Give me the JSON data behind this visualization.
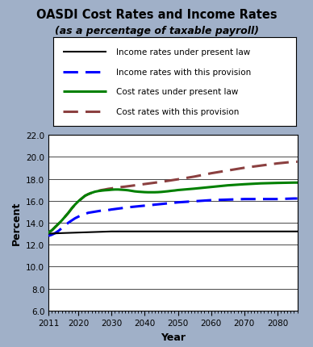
{
  "title": "OASDI Cost Rates and Income Rates",
  "subtitle": "(as a percentage of taxable payroll)",
  "xlabel": "Year",
  "ylabel": "Percent",
  "ylim": [
    6.0,
    22.0
  ],
  "yticks": [
    6.0,
    8.0,
    10.0,
    12.0,
    14.0,
    16.0,
    18.0,
    20.0,
    22.0
  ],
  "xlim": [
    2011,
    2086
  ],
  "xticks": [
    2011,
    2020,
    2030,
    2040,
    2050,
    2060,
    2070,
    2080
  ],
  "background_color": "#a0b0c8",
  "plot_background": "#ffffff",
  "legend_labels": [
    "Income rates under present law",
    "Income rates with this provision",
    "Cost rates under present law",
    "Cost rates with this provision"
  ],
  "income_present_law_x": [
    2011,
    2015,
    2020,
    2025,
    2030,
    2035,
    2040,
    2045,
    2050,
    2055,
    2060,
    2065,
    2070,
    2075,
    2080,
    2085,
    2086
  ],
  "income_present_law_y": [
    13.0,
    13.05,
    13.1,
    13.15,
    13.2,
    13.2,
    13.2,
    13.2,
    13.2,
    13.2,
    13.2,
    13.2,
    13.2,
    13.2,
    13.2,
    13.2,
    13.2
  ],
  "income_provision_x": [
    2011,
    2012,
    2013,
    2014,
    2015,
    2016,
    2017,
    2018,
    2019,
    2020,
    2021,
    2022,
    2023,
    2024,
    2025,
    2026,
    2027,
    2028,
    2029,
    2030,
    2035,
    2040,
    2045,
    2050,
    2055,
    2060,
    2065,
    2070,
    2075,
    2080,
    2085,
    2086
  ],
  "income_provision_y": [
    12.8,
    12.9,
    13.05,
    13.25,
    13.5,
    13.75,
    14.0,
    14.2,
    14.4,
    14.55,
    14.7,
    14.8,
    14.9,
    14.95,
    15.0,
    15.05,
    15.1,
    15.1,
    15.15,
    15.2,
    15.4,
    15.55,
    15.7,
    15.85,
    15.95,
    16.05,
    16.1,
    16.15,
    16.15,
    16.15,
    16.2,
    16.2
  ],
  "cost_present_law_x": [
    2011,
    2012,
    2013,
    2014,
    2015,
    2016,
    2017,
    2018,
    2019,
    2020,
    2021,
    2022,
    2023,
    2024,
    2025,
    2026,
    2027,
    2028,
    2029,
    2030,
    2031,
    2032,
    2033,
    2034,
    2035,
    2036,
    2037,
    2038,
    2039,
    2040,
    2041,
    2042,
    2043,
    2044,
    2045,
    2046,
    2047,
    2048,
    2049,
    2050,
    2055,
    2060,
    2065,
    2070,
    2075,
    2080,
    2085,
    2086
  ],
  "cost_present_law_y": [
    13.1,
    13.3,
    13.6,
    13.9,
    14.2,
    14.55,
    14.9,
    15.3,
    15.65,
    15.95,
    16.2,
    16.45,
    16.6,
    16.72,
    16.82,
    16.88,
    16.92,
    16.95,
    16.97,
    17.0,
    17.02,
    17.02,
    17.0,
    16.98,
    16.95,
    16.9,
    16.85,
    16.82,
    16.8,
    16.78,
    16.77,
    16.77,
    16.77,
    16.78,
    16.8,
    16.83,
    16.86,
    16.9,
    16.93,
    16.97,
    17.1,
    17.25,
    17.4,
    17.5,
    17.58,
    17.62,
    17.65,
    17.65
  ],
  "cost_provision_x": [
    2011,
    2012,
    2013,
    2014,
    2015,
    2016,
    2017,
    2018,
    2019,
    2020,
    2021,
    2022,
    2023,
    2024,
    2025,
    2026,
    2027,
    2028,
    2029,
    2030,
    2031,
    2032,
    2033,
    2034,
    2035,
    2036,
    2037,
    2038,
    2039,
    2040,
    2045,
    2050,
    2055,
    2060,
    2065,
    2070,
    2075,
    2080,
    2085,
    2086
  ],
  "cost_provision_y": [
    13.1,
    13.3,
    13.6,
    13.9,
    14.2,
    14.55,
    14.9,
    15.3,
    15.65,
    15.95,
    16.2,
    16.45,
    16.6,
    16.72,
    16.82,
    16.9,
    16.97,
    17.02,
    17.08,
    17.12,
    17.18,
    17.22,
    17.25,
    17.28,
    17.32,
    17.36,
    17.4,
    17.44,
    17.48,
    17.52,
    17.72,
    17.95,
    18.2,
    18.5,
    18.75,
    19.0,
    19.2,
    19.4,
    19.55,
    19.55
  ]
}
